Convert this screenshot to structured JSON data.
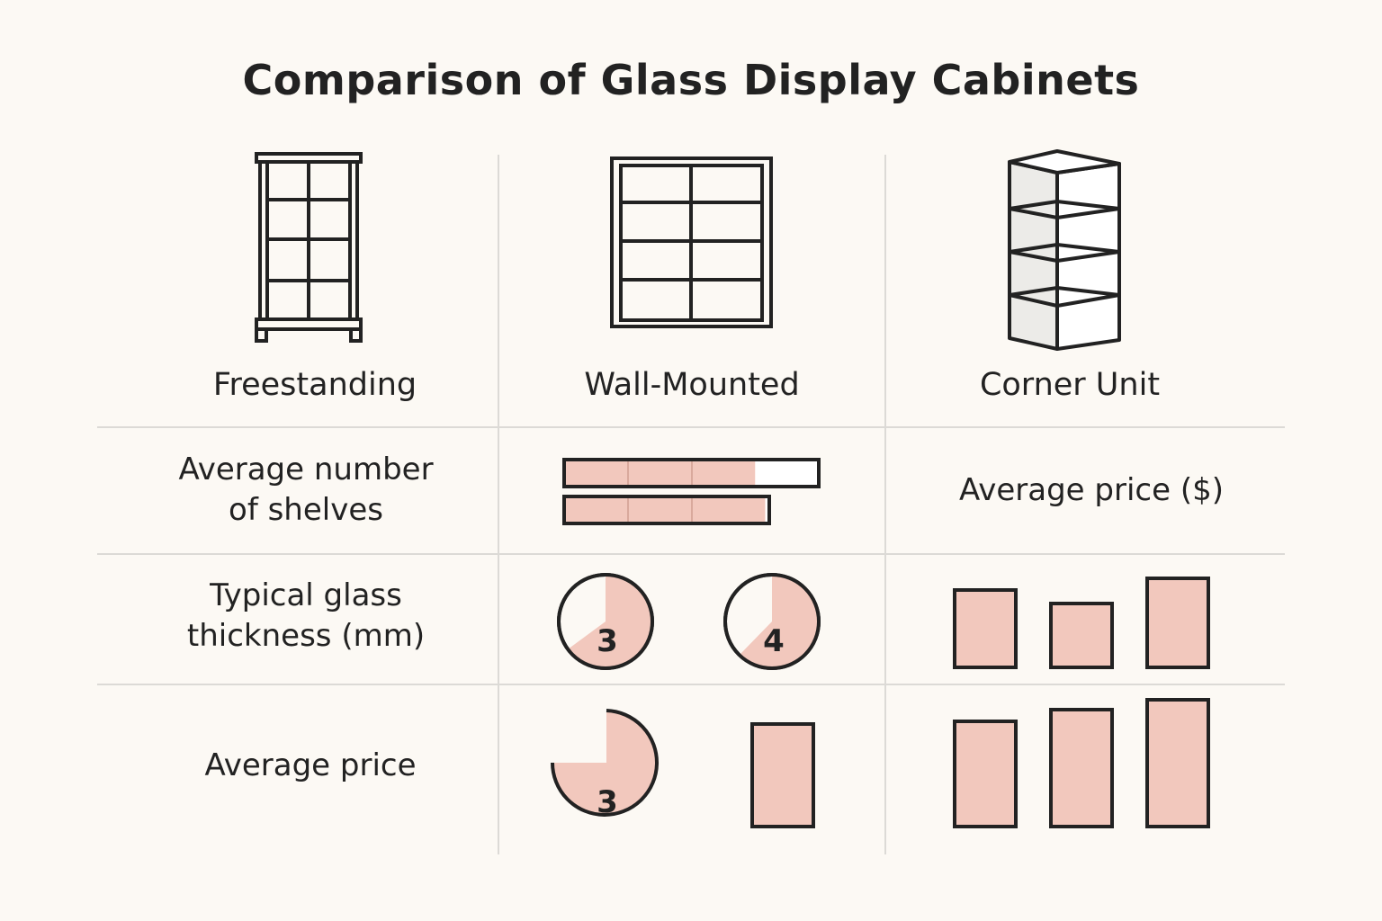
{
  "title": "Comparison of Glass Display Cabinets",
  "colors": {
    "background": "#fcf9f4",
    "fill": "#f2c8bd",
    "stroke": "#222222",
    "divider": "#dcdad6"
  },
  "cabinets": [
    {
      "name": "Freestanding",
      "icon": "freestanding-cabinet-icon"
    },
    {
      "name": "Wall-Mounted",
      "icon": "wall-mounted-cabinet-icon"
    },
    {
      "name": "Corner Unit",
      "icon": "corner-cabinet-icon"
    }
  ],
  "rows": {
    "shelves": {
      "label_line1": "Average number",
      "label_line2": "of shelves",
      "side_label": "Average price ($)",
      "bar_fill_fraction": [
        0.75,
        0.98
      ]
    },
    "thickness": {
      "label_line1": "Typical glass",
      "label_line2": "thickness (mm)",
      "pie_values": [
        "3",
        "4"
      ]
    },
    "price": {
      "label": "Average price",
      "pie_value": "3"
    }
  }
}
